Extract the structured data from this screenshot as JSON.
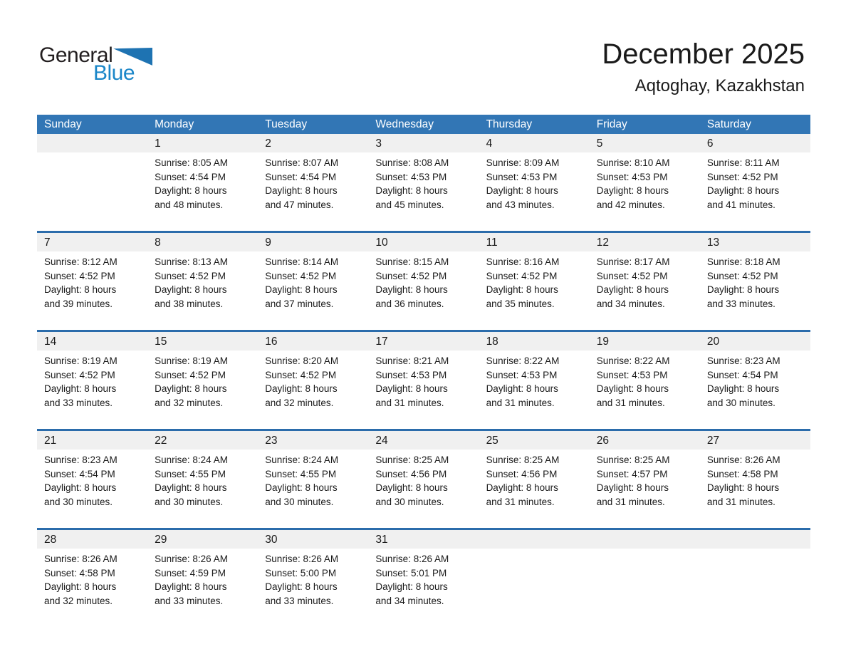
{
  "logo": {
    "general": "General",
    "blue": "Blue"
  },
  "header": {
    "title": "December 2025",
    "subtitle": "Aqtoghay, Kazakhstan"
  },
  "colors": {
    "header_bg": "#3276b5",
    "row_line": "#2b6cab",
    "band_bg": "#f0f0f0",
    "logo_black": "#231f20",
    "logo_blue": "#1a86c8",
    "logo_triangle": "#1e73b2"
  },
  "calendar": {
    "day_headers": [
      "Sunday",
      "Monday",
      "Tuesday",
      "Wednesday",
      "Thursday",
      "Friday",
      "Saturday"
    ],
    "weeks": [
      [
        null,
        {
          "day": "1",
          "sunrise": "Sunrise: 8:05 AM",
          "sunset": "Sunset: 4:54 PM",
          "daylight": "Daylight: 8 hours and 48 minutes."
        },
        {
          "day": "2",
          "sunrise": "Sunrise: 8:07 AM",
          "sunset": "Sunset: 4:54 PM",
          "daylight": "Daylight: 8 hours and 47 minutes."
        },
        {
          "day": "3",
          "sunrise": "Sunrise: 8:08 AM",
          "sunset": "Sunset: 4:53 PM",
          "daylight": "Daylight: 8 hours and 45 minutes."
        },
        {
          "day": "4",
          "sunrise": "Sunrise: 8:09 AM",
          "sunset": "Sunset: 4:53 PM",
          "daylight": "Daylight: 8 hours and 43 minutes."
        },
        {
          "day": "5",
          "sunrise": "Sunrise: 8:10 AM",
          "sunset": "Sunset: 4:53 PM",
          "daylight": "Daylight: 8 hours and 42 minutes."
        },
        {
          "day": "6",
          "sunrise": "Sunrise: 8:11 AM",
          "sunset": "Sunset: 4:52 PM",
          "daylight": "Daylight: 8 hours and 41 minutes."
        }
      ],
      [
        {
          "day": "7",
          "sunrise": "Sunrise: 8:12 AM",
          "sunset": "Sunset: 4:52 PM",
          "daylight": "Daylight: 8 hours and 39 minutes."
        },
        {
          "day": "8",
          "sunrise": "Sunrise: 8:13 AM",
          "sunset": "Sunset: 4:52 PM",
          "daylight": "Daylight: 8 hours and 38 minutes."
        },
        {
          "day": "9",
          "sunrise": "Sunrise: 8:14 AM",
          "sunset": "Sunset: 4:52 PM",
          "daylight": "Daylight: 8 hours and 37 minutes."
        },
        {
          "day": "10",
          "sunrise": "Sunrise: 8:15 AM",
          "sunset": "Sunset: 4:52 PM",
          "daylight": "Daylight: 8 hours and 36 minutes."
        },
        {
          "day": "11",
          "sunrise": "Sunrise: 8:16 AM",
          "sunset": "Sunset: 4:52 PM",
          "daylight": "Daylight: 8 hours and 35 minutes."
        },
        {
          "day": "12",
          "sunrise": "Sunrise: 8:17 AM",
          "sunset": "Sunset: 4:52 PM",
          "daylight": "Daylight: 8 hours and 34 minutes."
        },
        {
          "day": "13",
          "sunrise": "Sunrise: 8:18 AM",
          "sunset": "Sunset: 4:52 PM",
          "daylight": "Daylight: 8 hours and 33 minutes."
        }
      ],
      [
        {
          "day": "14",
          "sunrise": "Sunrise: 8:19 AM",
          "sunset": "Sunset: 4:52 PM",
          "daylight": "Daylight: 8 hours and 33 minutes."
        },
        {
          "day": "15",
          "sunrise": "Sunrise: 8:19 AM",
          "sunset": "Sunset: 4:52 PM",
          "daylight": "Daylight: 8 hours and 32 minutes."
        },
        {
          "day": "16",
          "sunrise": "Sunrise: 8:20 AM",
          "sunset": "Sunset: 4:52 PM",
          "daylight": "Daylight: 8 hours and 32 minutes."
        },
        {
          "day": "17",
          "sunrise": "Sunrise: 8:21 AM",
          "sunset": "Sunset: 4:53 PM",
          "daylight": "Daylight: 8 hours and 31 minutes."
        },
        {
          "day": "18",
          "sunrise": "Sunrise: 8:22 AM",
          "sunset": "Sunset: 4:53 PM",
          "daylight": "Daylight: 8 hours and 31 minutes."
        },
        {
          "day": "19",
          "sunrise": "Sunrise: 8:22 AM",
          "sunset": "Sunset: 4:53 PM",
          "daylight": "Daylight: 8 hours and 31 minutes."
        },
        {
          "day": "20",
          "sunrise": "Sunrise: 8:23 AM",
          "sunset": "Sunset: 4:54 PM",
          "daylight": "Daylight: 8 hours and 30 minutes."
        }
      ],
      [
        {
          "day": "21",
          "sunrise": "Sunrise: 8:23 AM",
          "sunset": "Sunset: 4:54 PM",
          "daylight": "Daylight: 8 hours and 30 minutes."
        },
        {
          "day": "22",
          "sunrise": "Sunrise: 8:24 AM",
          "sunset": "Sunset: 4:55 PM",
          "daylight": "Daylight: 8 hours and 30 minutes."
        },
        {
          "day": "23",
          "sunrise": "Sunrise: 8:24 AM",
          "sunset": "Sunset: 4:55 PM",
          "daylight": "Daylight: 8 hours and 30 minutes."
        },
        {
          "day": "24",
          "sunrise": "Sunrise: 8:25 AM",
          "sunset": "Sunset: 4:56 PM",
          "daylight": "Daylight: 8 hours and 30 minutes."
        },
        {
          "day": "25",
          "sunrise": "Sunrise: 8:25 AM",
          "sunset": "Sunset: 4:56 PM",
          "daylight": "Daylight: 8 hours and 31 minutes."
        },
        {
          "day": "26",
          "sunrise": "Sunrise: 8:25 AM",
          "sunset": "Sunset: 4:57 PM",
          "daylight": "Daylight: 8 hours and 31 minutes."
        },
        {
          "day": "27",
          "sunrise": "Sunrise: 8:26 AM",
          "sunset": "Sunset: 4:58 PM",
          "daylight": "Daylight: 8 hours and 31 minutes."
        }
      ],
      [
        {
          "day": "28",
          "sunrise": "Sunrise: 8:26 AM",
          "sunset": "Sunset: 4:58 PM",
          "daylight": "Daylight: 8 hours and 32 minutes."
        },
        {
          "day": "29",
          "sunrise": "Sunrise: 8:26 AM",
          "sunset": "Sunset: 4:59 PM",
          "daylight": "Daylight: 8 hours and 33 minutes."
        },
        {
          "day": "30",
          "sunrise": "Sunrise: 8:26 AM",
          "sunset": "Sunset: 5:00 PM",
          "daylight": "Daylight: 8 hours and 33 minutes."
        },
        {
          "day": "31",
          "sunrise": "Sunrise: 8:26 AM",
          "sunset": "Sunset: 5:01 PM",
          "daylight": "Daylight: 8 hours and 34 minutes."
        },
        null,
        null,
        null
      ]
    ]
  }
}
